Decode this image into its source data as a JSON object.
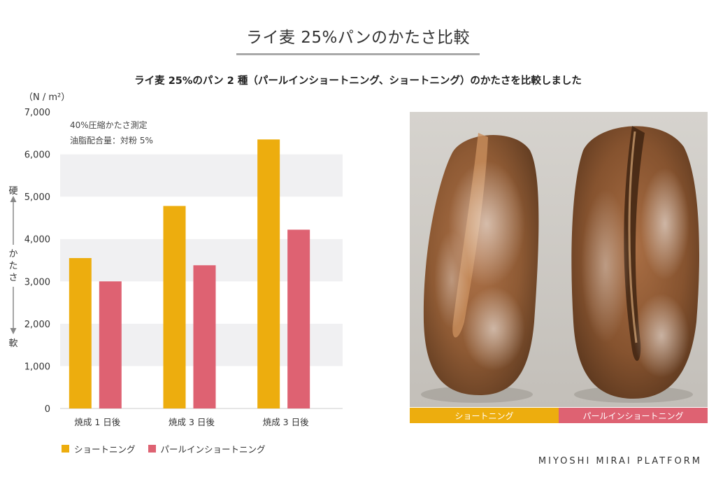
{
  "page_title": "ライ麦 25%パンのかたさ比較",
  "subtitle": "ライ麦 25%のパン 2 種（パールインショートニング、ショートニング）のかたさを比較しました",
  "chart_data": {
    "type": "bar",
    "unit": "（N / m²）",
    "categories": [
      "焼成 1 日後",
      "焼成 3 日後",
      "焼成 3 日後"
    ],
    "series": [
      {
        "name": "ショートニング",
        "color": "#EDAD0E",
        "values": [
          3550,
          4780,
          6350
        ]
      },
      {
        "name": "パールインショートニング",
        "color": "#DE6272",
        "values": [
          3000,
          3380,
          4220
        ]
      }
    ],
    "ylim": [
      0,
      7000
    ],
    "yticks": [
      "0",
      "1,000",
      "2,000",
      "3,000",
      "4,000",
      "5,000",
      "6,000",
      "7,000"
    ],
    "ylabel_top": "硬",
    "ylabel_middle": "かたさ",
    "ylabel_bottom": "軟",
    "notes": [
      "40%圧縮かたさ測定",
      "油脂配合量：対粉 5%"
    ],
    "legend_position": "bottom-left"
  },
  "photo_labels": {
    "left": "ショートニング",
    "right": "パールインショートニング",
    "left_color": "#EDAD0E",
    "right_color": "#DE6272"
  },
  "brand": "MIYOSHI MIRAI PLATFORM"
}
